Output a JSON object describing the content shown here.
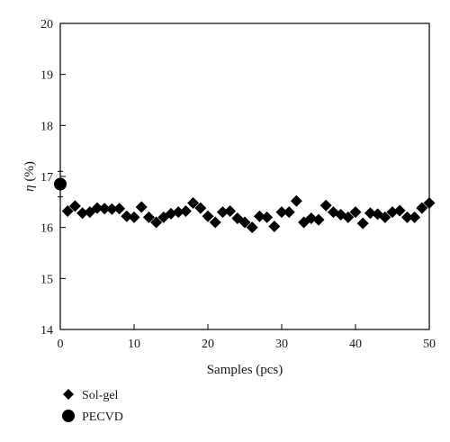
{
  "chart_data": {
    "type": "scatter",
    "title": "",
    "xlabel": "Samples (pcs)",
    "ylabel_symbol": "η",
    "ylabel_unit": " (%)",
    "xlim": [
      0,
      50
    ],
    "ylim": [
      14,
      20
    ],
    "xticks": [
      0,
      10,
      20,
      30,
      40,
      50
    ],
    "yticks": [
      14,
      15,
      16,
      17,
      18,
      19,
      20
    ],
    "grid": false,
    "legend_position": "bottom-left",
    "series": [
      {
        "name": "Sol-gel",
        "marker": "diamond",
        "color": "#000000",
        "x": [
          1,
          2,
          3,
          4,
          5,
          6,
          7,
          8,
          9,
          10,
          11,
          12,
          13,
          14,
          15,
          16,
          17,
          18,
          19,
          20,
          21,
          22,
          23,
          24,
          25,
          26,
          27,
          28,
          29,
          30,
          31,
          32,
          33,
          34,
          35,
          36,
          37,
          38,
          39,
          40,
          41,
          42,
          43,
          44,
          45,
          46,
          47,
          48,
          49,
          50
        ],
        "y": [
          16.32,
          16.42,
          16.28,
          16.3,
          16.38,
          16.37,
          16.36,
          16.37,
          16.22,
          16.2,
          16.4,
          16.2,
          16.1,
          16.2,
          16.27,
          16.3,
          16.32,
          16.48,
          16.38,
          16.22,
          16.1,
          16.3,
          16.32,
          16.18,
          16.1,
          16.0,
          16.22,
          16.2,
          16.02,
          16.3,
          16.3,
          16.52,
          16.1,
          16.18,
          16.15,
          16.43,
          16.3,
          16.25,
          16.2,
          16.3,
          16.08,
          16.28,
          16.26,
          16.2,
          16.3,
          16.33,
          16.2,
          16.2,
          16.38,
          16.48
        ]
      },
      {
        "name": "PECVD",
        "marker": "circle",
        "color": "#000000",
        "x": [
          0
        ],
        "y": [
          16.85
        ],
        "y_error": [
          0.25
        ],
        "x_error": [
          0.6
        ]
      }
    ]
  }
}
